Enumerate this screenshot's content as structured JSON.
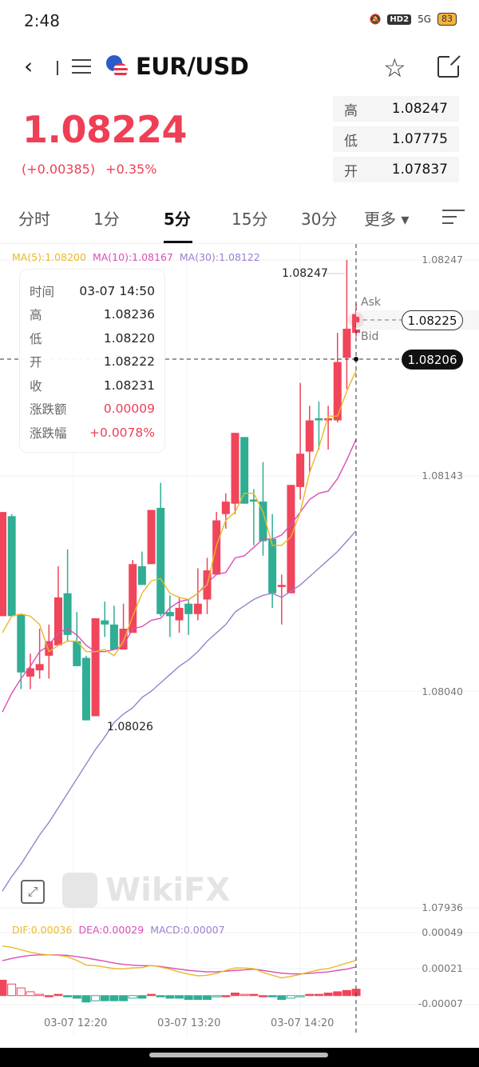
{
  "status": {
    "time": "2:48",
    "network": "HD2",
    "signal": "5G",
    "battery": "83"
  },
  "header": {
    "back": "‹",
    "pair": "EUR/USD"
  },
  "quote": {
    "price": "1.08224",
    "change": "(+0.00385)",
    "change_pct": "+0.35%",
    "stats": [
      {
        "k": "高",
        "v": "1.08247"
      },
      {
        "k": "低",
        "v": "1.07775"
      },
      {
        "k": "开",
        "v": "1.07837"
      }
    ]
  },
  "tabs": [
    {
      "label": "分时"
    },
    {
      "label": "1分"
    },
    {
      "label": "5分",
      "active": true
    },
    {
      "label": "15分"
    },
    {
      "label": "30分"
    },
    {
      "label": "更多 ▾"
    }
  ],
  "ma_legend": {
    "ma5": "MA(5):1.08200",
    "ma10": "MA(10):1.08167",
    "ma30": "MA(30):1.08122"
  },
  "price_axis": [
    "1.08247",
    "1.08143",
    "1.08040",
    "1.07936"
  ],
  "tooltip": [
    {
      "k": "时间",
      "v": "03-07 14:50"
    },
    {
      "k": "高",
      "v": "1.08236"
    },
    {
      "k": "低",
      "v": "1.08220"
    },
    {
      "k": "开",
      "v": "1.08222"
    },
    {
      "k": "收",
      "v": "1.08231"
    },
    {
      "k": "涨跌额",
      "v": "0.00009",
      "red": true
    },
    {
      "k": "涨跌幅",
      "v": "+0.0078%",
      "red": true
    }
  ],
  "labels": {
    "high": "1.08247",
    "low": "1.08026",
    "ask": "Ask",
    "bid": "Bid",
    "ask_price": "1.08225",
    "bid_price": "1.08206"
  },
  "watermark": "WikiFX",
  "macd_legend": {
    "dif": "DIF:0.00036",
    "dea": "DEA:0.00029",
    "macd": "MACD:0.00007"
  },
  "macd_axis": [
    "0.00049",
    "0.00021",
    "-0.00007"
  ],
  "time_axis": [
    "03-07 12:20",
    "03-07 13:20",
    "03-07 14:20"
  ],
  "colors": {
    "up": "#f0455a",
    "down": "#2fae94",
    "ma5": "#e8b82a",
    "ma10": "#d94fb8",
    "ma30": "#9a7fd1"
  },
  "chart_data": {
    "type": "candlestick",
    "ylim": [
      1.07936,
      1.08247
    ],
    "candles": [
      [
        1.08076,
        1.08126,
        1.08076,
        1.08126
      ],
      [
        1.08124,
        1.08125,
        1.08076,
        1.08076
      ],
      [
        1.08077,
        1.08077,
        1.08041,
        1.08049
      ],
      [
        1.08047,
        1.08058,
        1.08041,
        1.08051
      ],
      [
        1.0805,
        1.0807,
        1.08046,
        1.08053
      ],
      [
        1.08057,
        1.08072,
        1.08046,
        1.08064
      ],
      [
        1.08062,
        1.081,
        1.08062,
        1.08085
      ],
      [
        1.08087,
        1.08108,
        1.08064,
        1.08067
      ],
      [
        1.08064,
        1.08078,
        1.08052,
        1.08052
      ],
      [
        1.08056,
        1.08057,
        1.08026,
        1.08026
      ],
      [
        1.08028,
        1.08075,
        1.08028,
        1.08075
      ],
      [
        1.08074,
        1.08083,
        1.08066,
        1.08072
      ],
      [
        1.08072,
        1.08081,
        1.0806,
        1.0806
      ],
      [
        1.0806,
        1.08082,
        1.0806,
        1.0807
      ],
      [
        1.08068,
        1.08103,
        1.08068,
        1.08101
      ],
      [
        1.081,
        1.08107,
        1.08091,
        1.08091
      ],
      [
        1.08101,
        1.08127,
        1.08101,
        1.08127
      ],
      [
        1.08128,
        1.0814,
        1.08076,
        1.08077
      ],
      [
        1.08078,
        1.08086,
        1.08066,
        1.08076
      ],
      [
        1.08074,
        1.08085,
        1.08068,
        1.0808
      ],
      [
        1.08082,
        1.08084,
        1.08067,
        1.08077
      ],
      [
        1.08077,
        1.08099,
        1.08074,
        1.08082
      ],
      [
        1.08084,
        1.08104,
        1.08077,
        1.08098
      ],
      [
        1.08096,
        1.08126,
        1.08096,
        1.08122
      ],
      [
        1.08125,
        1.08135,
        1.08118,
        1.08131
      ],
      [
        1.0813,
        1.08164,
        1.08125,
        1.08164
      ],
      [
        1.08162,
        1.08162,
        1.0813,
        1.0813
      ],
      [
        1.08132,
        1.08137,
        1.0811,
        1.08131
      ],
      [
        1.08131,
        1.0815,
        1.08105,
        1.08112
      ],
      [
        1.08113,
        1.08125,
        1.0808,
        1.08087
      ],
      [
        1.0809,
        1.08096,
        1.08072,
        1.08091
      ],
      [
        1.08087,
        1.08139,
        1.08087,
        1.08139
      ],
      [
        1.08138,
        1.08188,
        1.08132,
        1.08154
      ],
      [
        1.08155,
        1.08177,
        1.08145,
        1.0817
      ],
      [
        1.08171,
        1.08179,
        1.08156,
        1.0817
      ],
      [
        1.0817,
        1.08177,
        1.08156,
        1.08171
      ],
      [
        1.0817,
        1.08212,
        1.08169,
        1.08198
      ],
      [
        1.082,
        1.08247,
        1.08185,
        1.08214
      ],
      [
        1.08212,
        1.08226,
        1.0821,
        1.08221
      ]
    ],
    "ma5": [
      1.08068,
      1.08076,
      1.08077,
      1.08076,
      1.08072,
      1.08059,
      1.08062,
      1.08064,
      1.08064,
      1.08059,
      1.08059,
      1.0806,
      1.08057,
      1.08064,
      1.08076,
      1.08087,
      1.08093,
      1.08094,
      1.08087,
      1.08085,
      1.08084,
      1.08087,
      1.08091,
      1.0811,
      1.08122,
      1.08126,
      1.08135,
      1.08135,
      1.08126,
      1.0811,
      1.0811,
      1.08114,
      1.08126,
      1.08145,
      1.08157,
      1.08172,
      1.08172,
      1.08184,
      1.08194
    ],
    "ma10": [
      1.0803,
      1.08039,
      1.08046,
      1.08052,
      1.08059,
      1.08062,
      1.08068,
      1.0807,
      1.08067,
      1.08062,
      1.08059,
      1.08059,
      1.0806,
      1.08062,
      1.0807,
      1.08071,
      1.08074,
      1.08075,
      1.0808,
      1.08083,
      1.08084,
      1.08087,
      1.08092,
      1.08096,
      1.08097,
      1.08104,
      1.08105,
      1.08109,
      1.08113,
      1.08113,
      1.08115,
      1.0812,
      1.08126,
      1.08132,
      1.08135,
      1.08136,
      1.08142,
      1.08151,
      1.08161
    ],
    "ma30": [
      1.07944,
      1.07951,
      1.07957,
      1.07964,
      1.07971,
      1.07977,
      1.07984,
      1.07991,
      1.07998,
      1.08005,
      1.08012,
      1.08018,
      1.08025,
      1.08029,
      1.08032,
      1.08037,
      1.0804,
      1.08044,
      1.08048,
      1.08052,
      1.08055,
      1.08059,
      1.08064,
      1.08068,
      1.08072,
      1.08078,
      1.08081,
      1.08084,
      1.08086,
      1.08087,
      1.08085,
      1.08088,
      1.08091,
      1.08095,
      1.08099,
      1.08103,
      1.08107,
      1.08112,
      1.08117
    ],
    "macd_hist": [
      0.00012,
      9e-05,
      6e-05,
      3e-05,
      1e-05,
      0,
      1e-05,
      -1e-05,
      -2e-05,
      -5e-05,
      -4e-05,
      -4e-05,
      -4e-05,
      -4e-05,
      -2e-05,
      -2e-05,
      1e-05,
      -1e-05,
      -2e-05,
      -2e-05,
      -3e-05,
      -3e-05,
      -3e-05,
      -1e-05,
      0,
      2e-05,
      1e-05,
      1e-05,
      0,
      -1e-05,
      -3e-05,
      -2e-05,
      -1e-05,
      1e-05,
      1e-05,
      2e-05,
      3e-05,
      4e-05,
      5e-05
    ],
    "dif": [
      0.000386,
      0.000375,
      0.000357,
      0.000338,
      0.000324,
      0.000317,
      0.000313,
      0.000303,
      0.000274,
      0.000237,
      0.000233,
      0.000222,
      0.00021,
      0.000208,
      0.000216,
      0.000218,
      0.000235,
      0.000222,
      0.000206,
      0.000185,
      0.000167,
      0.000154,
      0.000158,
      0.000173,
      0.000196,
      0.000216,
      0.000214,
      0.00021,
      0.000181,
      0.000158,
      0.000138,
      0.00015,
      0.000165,
      0.000185,
      0.0002,
      0.00021,
      0.000231,
      0.000253,
      0.000274
    ],
    "dea": [
      0.000272,
      0.000289,
      0.000303,
      0.000313,
      0.000317,
      0.000317,
      0.000317,
      0.000313,
      0.000303,
      0.000293,
      0.00028,
      0.000268,
      0.000253,
      0.000243,
      0.000237,
      0.000233,
      0.000233,
      0.000227,
      0.000216,
      0.000206,
      0.000196,
      0.00019,
      0.000185,
      0.000185,
      0.00019,
      0.000196,
      0.0002,
      0.000206,
      0.000196,
      0.000185,
      0.000175,
      0.000169,
      0.000169,
      0.000173,
      0.000179,
      0.000185,
      0.000196,
      0.000206,
      0.000224
    ]
  }
}
